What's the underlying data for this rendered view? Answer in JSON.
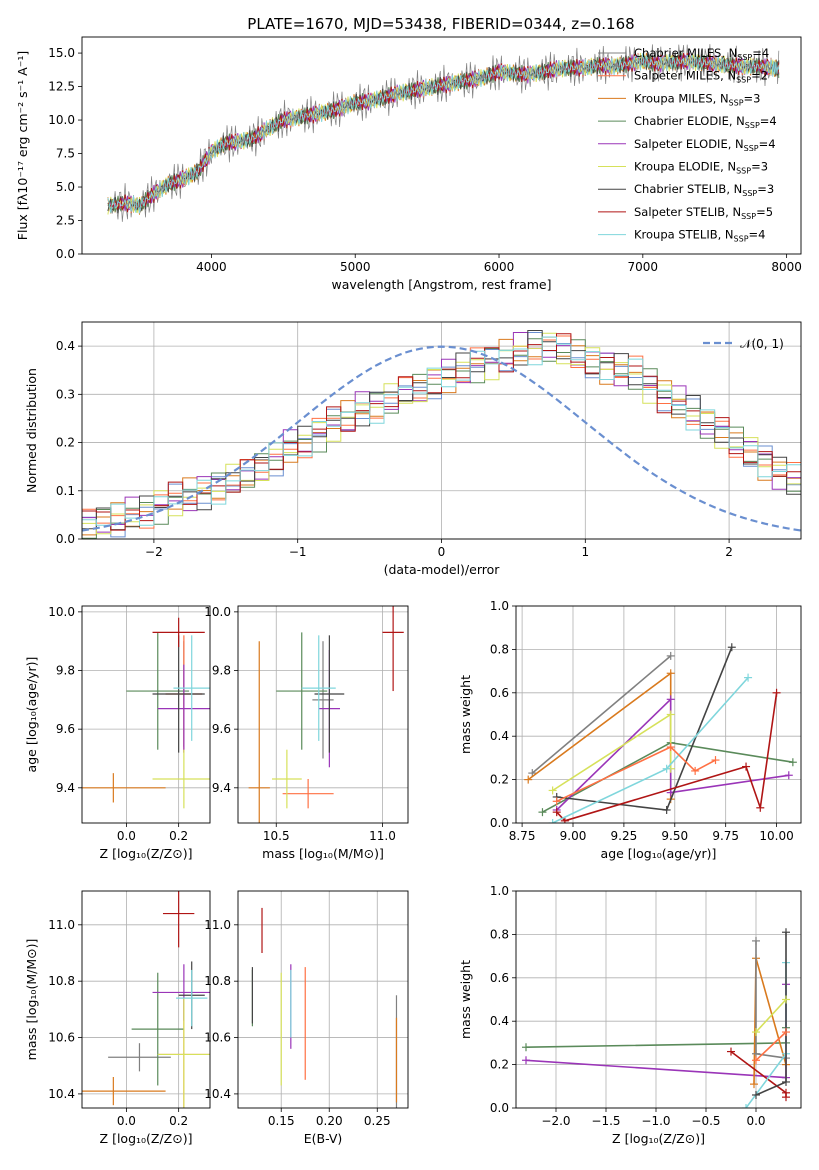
{
  "figure_title": "PLATE=1670, MJD=53438, FIBERID=0344, z=0.168",
  "series_styles": [
    {
      "name": "Chabrier MILES",
      "nssp": "4",
      "color": "#808080"
    },
    {
      "name": "Salpeter MILES",
      "nssp": "2",
      "color": "#ff7043"
    },
    {
      "name": "Kroupa MILES",
      "nssp": "3",
      "color": "#d97a1e"
    },
    {
      "name": "Chabrier ELODIE",
      "nssp": "4",
      "color": "#5a8a5a"
    },
    {
      "name": "Salpeter ELODIE",
      "nssp": "4",
      "color": "#9a35b8"
    },
    {
      "name": "Kroupa ELODIE",
      "nssp": "3",
      "color": "#d6e15a"
    },
    {
      "name": "Chabrier STELIB",
      "nssp": "3",
      "color": "#444444"
    },
    {
      "name": "Salpeter STELIB",
      "nssp": "5",
      "color": "#b01515"
    },
    {
      "name": "Kroupa STELIB",
      "nssp": "4",
      "color": "#7fd6dc"
    }
  ],
  "chart_data": [
    {
      "id": "spectrum",
      "type": "line",
      "xlabel": "wavelength [Angstrom, rest frame]",
      "ylabel": "Flux [fλ10⁻¹⁷ erg cm⁻² s⁻¹ A⁻¹]",
      "xlim": [
        3100,
        8100
      ],
      "ylim": [
        0,
        16.2
      ],
      "xticks": [
        4000,
        5000,
        6000,
        7000,
        8000
      ],
      "yticks": [
        0.0,
        2.5,
        5.0,
        7.5,
        10.0,
        12.5,
        15.0
      ],
      "legend_position": "right",
      "x": [
        3280,
        3400,
        3500,
        3600,
        3700,
        3800,
        3900,
        4000,
        4100,
        4200,
        4300,
        4400,
        4500,
        4600,
        4700,
        4800,
        4900,
        5000,
        5100,
        5200,
        5300,
        5400,
        5500,
        5600,
        5700,
        5800,
        5900,
        6000,
        6100,
        6200,
        6300,
        6400,
        6500,
        6600,
        6700,
        6800,
        6900,
        7000,
        7100,
        7200,
        7300,
        7400,
        7500,
        7600,
        7700,
        7800,
        7900,
        7950
      ],
      "y": [
        3.6,
        3.8,
        3.6,
        4.5,
        5.2,
        5.6,
        6.1,
        7.6,
        8.3,
        8.4,
        8.7,
        9.4,
        10.0,
        10.2,
        10.4,
        10.6,
        10.9,
        11.3,
        11.4,
        11.7,
        12.0,
        12.2,
        12.4,
        12.6,
        12.8,
        13.0,
        13.2,
        13.6,
        13.5,
        13.4,
        13.6,
        13.8,
        13.9,
        13.9,
        14.1,
        14.0,
        14.2,
        14.4,
        14.2,
        14.3,
        14.4,
        14.3,
        14.2,
        14.1,
        14.0,
        14.0,
        13.9,
        13.8
      ]
    },
    {
      "id": "residual-histogram",
      "type": "histogram",
      "xlabel": "(data-model)/error",
      "ylabel": "Normed distribution",
      "xlim": [
        -2.5,
        2.5
      ],
      "ylim": [
        0,
        0.45
      ],
      "xticks": [
        -2,
        -1,
        0,
        1,
        2
      ],
      "yticks": [
        0.0,
        0.1,
        0.2,
        0.3,
        0.4
      ],
      "legend": "𝒩(0, 1)",
      "legend_position": "top-right",
      "bin_width": 0.1,
      "x_start": -2.5,
      "values": [
        0.03,
        0.04,
        0.04,
        0.05,
        0.06,
        0.07,
        0.08,
        0.09,
        0.1,
        0.11,
        0.12,
        0.13,
        0.15,
        0.17,
        0.19,
        0.2,
        0.22,
        0.24,
        0.25,
        0.27,
        0.28,
        0.29,
        0.3,
        0.31,
        0.33,
        0.34,
        0.35,
        0.36,
        0.37,
        0.38,
        0.39,
        0.4,
        0.4,
        0.39,
        0.38,
        0.37,
        0.36,
        0.35,
        0.34,
        0.32,
        0.3,
        0.28,
        0.26,
        0.24,
        0.22,
        0.2,
        0.18,
        0.16,
        0.14,
        0.12
      ],
      "gaussian_mean": 0,
      "gaussian_sigma": 1
    },
    {
      "id": "age-vs-z",
      "type": "errorbar",
      "xlabel": "Z [log₁₀(Z/Z⊙)]",
      "ylabel": "age  [log₁₀(age/yr)]",
      "xlim": [
        -0.17,
        0.32
      ],
      "ylim": [
        9.28,
        10.02
      ],
      "xticks": [
        0.0,
        0.2
      ],
      "yticks": [
        9.4,
        9.6,
        9.8,
        10.0
      ],
      "points": [
        {
          "s": 0,
          "x": 0.22,
          "y": 9.72,
          "xerr": 0.07,
          "yerr": 0.18
        },
        {
          "s": 1,
          "x": 0.22,
          "y": 9.72,
          "xerr": 0.07,
          "yerr": 0.2
        },
        {
          "s": 2,
          "x": -0.05,
          "y": 9.4,
          "xerr": 0.2,
          "yerr": 0.05
        },
        {
          "s": 3,
          "x": 0.12,
          "y": 9.73,
          "xerr": 0.12,
          "yerr": 0.2
        },
        {
          "s": 4,
          "x": 0.22,
          "y": 9.67,
          "xerr": 0.1,
          "yerr": 0.15
        },
        {
          "s": 5,
          "x": 0.22,
          "y": 9.43,
          "xerr": 0.12,
          "yerr": 0.1
        },
        {
          "s": 6,
          "x": 0.2,
          "y": 9.72,
          "xerr": 0.1,
          "yerr": 0.2
        },
        {
          "s": 7,
          "x": 0.2,
          "y": 9.93,
          "xerr": 0.1,
          "yerr": 0.05
        },
        {
          "s": 8,
          "x": 0.25,
          "y": 9.74,
          "xerr": 0.07,
          "yerr": 0.18
        }
      ]
    },
    {
      "id": "age-vs-mass",
      "type": "errorbar",
      "xlabel": "mass [log₁₀(M/M⊙)]",
      "ylabel": "",
      "xlim": [
        10.32,
        11.12
      ],
      "ylim": [
        9.28,
        10.02
      ],
      "xticks": [
        10.5,
        11.0
      ],
      "yticks": [
        9.4,
        9.6,
        9.8,
        10.0
      ],
      "points": [
        {
          "s": 0,
          "x": 10.72,
          "y": 9.7,
          "xerr": 0.05,
          "yerr": 0.2
        },
        {
          "s": 1,
          "x": 10.65,
          "y": 9.38,
          "xerr": 0.12,
          "yerr": 0.05
        },
        {
          "s": 2,
          "x": 10.42,
          "y": 9.4,
          "xerr": 0.05,
          "yerr": 0.5
        },
        {
          "s": 3,
          "x": 10.62,
          "y": 9.73,
          "xerr": 0.12,
          "yerr": 0.2
        },
        {
          "s": 4,
          "x": 10.75,
          "y": 9.67,
          "xerr": 0.05,
          "yerr": 0.2
        },
        {
          "s": 5,
          "x": 10.55,
          "y": 9.43,
          "xerr": 0.07,
          "yerr": 0.1
        },
        {
          "s": 6,
          "x": 10.75,
          "y": 9.72,
          "xerr": 0.07,
          "yerr": 0.2
        },
        {
          "s": 7,
          "x": 11.05,
          "y": 9.93,
          "xerr": 0.05,
          "yerr": 0.2
        },
        {
          "s": 8,
          "x": 10.7,
          "y": 9.74,
          "xerr": 0.08,
          "yerr": 0.18
        }
      ]
    },
    {
      "id": "weight-vs-age",
      "type": "line",
      "xlabel": "age  [log₁₀(age/yr)]",
      "ylabel": "mass weight",
      "xlim": [
        8.72,
        10.12
      ],
      "ylim": [
        0,
        1.0
      ],
      "xticks": [
        8.75,
        9.0,
        9.25,
        9.5,
        9.75,
        10.0
      ],
      "yticks": [
        0.0,
        0.2,
        0.4,
        0.6,
        0.8,
        1.0
      ],
      "series": [
        {
          "s": 0,
          "x": [
            8.8,
            9.48
          ],
          "y": [
            0.23,
            0.77
          ]
        },
        {
          "s": 2,
          "x": [
            8.78,
            9.48,
            9.48
          ],
          "y": [
            0.2,
            0.69,
            0.11
          ]
        },
        {
          "s": 3,
          "x": [
            8.85,
            9.48,
            10.08
          ],
          "y": [
            0.05,
            0.37,
            0.28
          ]
        },
        {
          "s": 4,
          "x": [
            8.92,
            9.48,
            9.48,
            10.06
          ],
          "y": [
            0.06,
            0.57,
            0.14,
            0.22
          ]
        },
        {
          "s": 5,
          "x": [
            8.9,
            9.48,
            9.48
          ],
          "y": [
            0.15,
            0.5,
            0.25
          ]
        },
        {
          "s": 6,
          "x": [
            8.92,
            9.46,
            9.78
          ],
          "y": [
            0.12,
            0.06,
            0.81
          ]
        },
        {
          "s": 7,
          "x": [
            8.92,
            8.96,
            9.85,
            9.92,
            10.0
          ],
          "y": [
            0.05,
            0.01,
            0.26,
            0.07,
            0.6
          ]
        },
        {
          "s": 8,
          "x": [
            8.9,
            9.46,
            9.86
          ],
          "y": [
            0.0,
            0.25,
            0.67
          ]
        },
        {
          "s": 1,
          "x": [
            8.92,
            9.48,
            9.6,
            9.7
          ],
          "y": [
            0.1,
            0.35,
            0.24,
            0.29
          ]
        }
      ]
    },
    {
      "id": "mass-vs-z",
      "type": "errorbar",
      "xlabel": "Z [log₁₀(Z/Z⊙)]",
      "ylabel": "mass [log₁₀(M/M⊙)]",
      "xlim": [
        -0.17,
        0.32
      ],
      "ylim": [
        10.35,
        11.12
      ],
      "xticks": [
        0.0,
        0.2
      ],
      "yticks": [
        10.4,
        10.6,
        10.8,
        11.0
      ],
      "points": [
        {
          "s": 0,
          "x": 0.05,
          "y": 10.53,
          "xerr": 0.12,
          "yerr": 0.05
        },
        {
          "s": 1,
          "x": 0.22,
          "y": 10.54,
          "xerr": 0.1,
          "yerr": 0.2
        },
        {
          "s": 2,
          "x": -0.05,
          "y": 10.41,
          "xerr": 0.2,
          "yerr": 0.05
        },
        {
          "s": 3,
          "x": 0.12,
          "y": 10.63,
          "xerr": 0.1,
          "yerr": 0.2
        },
        {
          "s": 4,
          "x": 0.22,
          "y": 10.76,
          "xerr": 0.12,
          "yerr": 0.1
        },
        {
          "s": 5,
          "x": 0.22,
          "y": 10.54,
          "xerr": 0.1,
          "yerr": 0.2
        },
        {
          "s": 6,
          "x": 0.25,
          "y": 10.75,
          "xerr": 0.05,
          "yerr": 0.12
        },
        {
          "s": 7,
          "x": 0.2,
          "y": 11.04,
          "xerr": 0.06,
          "yerr": 0.12
        },
        {
          "s": 8,
          "x": 0.25,
          "y": 10.74,
          "xerr": 0.06,
          "yerr": 0.1
        }
      ]
    },
    {
      "id": "mass-vs-ebv",
      "type": "errorbar",
      "xlabel": "E(B-V)",
      "ylabel": "",
      "xlim": [
        0.105,
        0.282
      ],
      "ylim": [
        10.35,
        11.12
      ],
      "xticks": [
        0.15,
        0.2,
        0.25
      ],
      "yticks": [
        10.4,
        10.6,
        10.8,
        11.0
      ],
      "points": [
        {
          "s": 0,
          "x": 0.27,
          "y": 10.55,
          "xerr": 0,
          "yerr": 0.2
        },
        {
          "s": 2,
          "x": 0.27,
          "y": 10.52,
          "xerr": 0,
          "yerr": 0.15
        },
        {
          "s": 3,
          "x": 0.12,
          "y": 10.74,
          "xerr": 0,
          "yerr": 0.1
        },
        {
          "s": 4,
          "x": 0.16,
          "y": 10.71,
          "xerr": 0,
          "yerr": 0.15
        },
        {
          "s": 5,
          "x": 0.15,
          "y": 10.63,
          "xerr": 0,
          "yerr": 0.2
        },
        {
          "s": 6,
          "x": 0.12,
          "y": 10.75,
          "xerr": 0,
          "yerr": 0.1
        },
        {
          "s": 7,
          "x": 0.13,
          "y": 10.98,
          "xerr": 0,
          "yerr": 0.08
        },
        {
          "s": 8,
          "x": 0.16,
          "y": 10.72,
          "xerr": 0,
          "yerr": 0.12
        },
        {
          "s": 1,
          "x": 0.175,
          "y": 10.65,
          "xerr": 0,
          "yerr": 0.2
        }
      ]
    },
    {
      "id": "weight-vs-z",
      "type": "line",
      "xlabel": "Z [log₁₀(Z/Z⊙)]",
      "ylabel": "mass weight",
      "xlim": [
        -2.4,
        0.45
      ],
      "ylim": [
        0,
        1.0
      ],
      "xticks": [
        -2.0,
        -1.5,
        -1.0,
        -0.5,
        0.0
      ],
      "yticks": [
        0.0,
        0.2,
        0.4,
        0.6,
        0.8,
        1.0
      ],
      "series": [
        {
          "s": 3,
          "x": [
            -2.3,
            0.3,
            0.3
          ],
          "y": [
            0.28,
            0.3,
            0.37
          ]
        },
        {
          "s": 4,
          "x": [
            -2.3,
            0.3,
            0.3
          ],
          "y": [
            0.22,
            0.14,
            0.57
          ]
        },
        {
          "s": 2,
          "x": [
            -0.02,
            0.0,
            0.3
          ],
          "y": [
            0.11,
            0.69,
            0.2
          ]
        },
        {
          "s": 0,
          "x": [
            0.0,
            0.0,
            0.3
          ],
          "y": [
            0.77,
            0.25,
            0.23
          ]
        },
        {
          "s": 7,
          "x": [
            -0.25,
            0.3,
            0.3
          ],
          "y": [
            0.26,
            0.07,
            0.05
          ]
        },
        {
          "s": 8,
          "x": [
            -0.1,
            0.3,
            0.3
          ],
          "y": [
            0.0,
            0.25,
            0.67
          ]
        },
        {
          "s": 6,
          "x": [
            0.0,
            0.3,
            0.3
          ],
          "y": [
            0.06,
            0.12,
            0.81
          ]
        },
        {
          "s": 5,
          "x": [
            0.0,
            0.3
          ],
          "y": [
            0.35,
            0.5
          ]
        },
        {
          "s": 1,
          "x": [
            0.0,
            0.3
          ],
          "y": [
            0.22,
            0.35
          ]
        }
      ]
    }
  ]
}
